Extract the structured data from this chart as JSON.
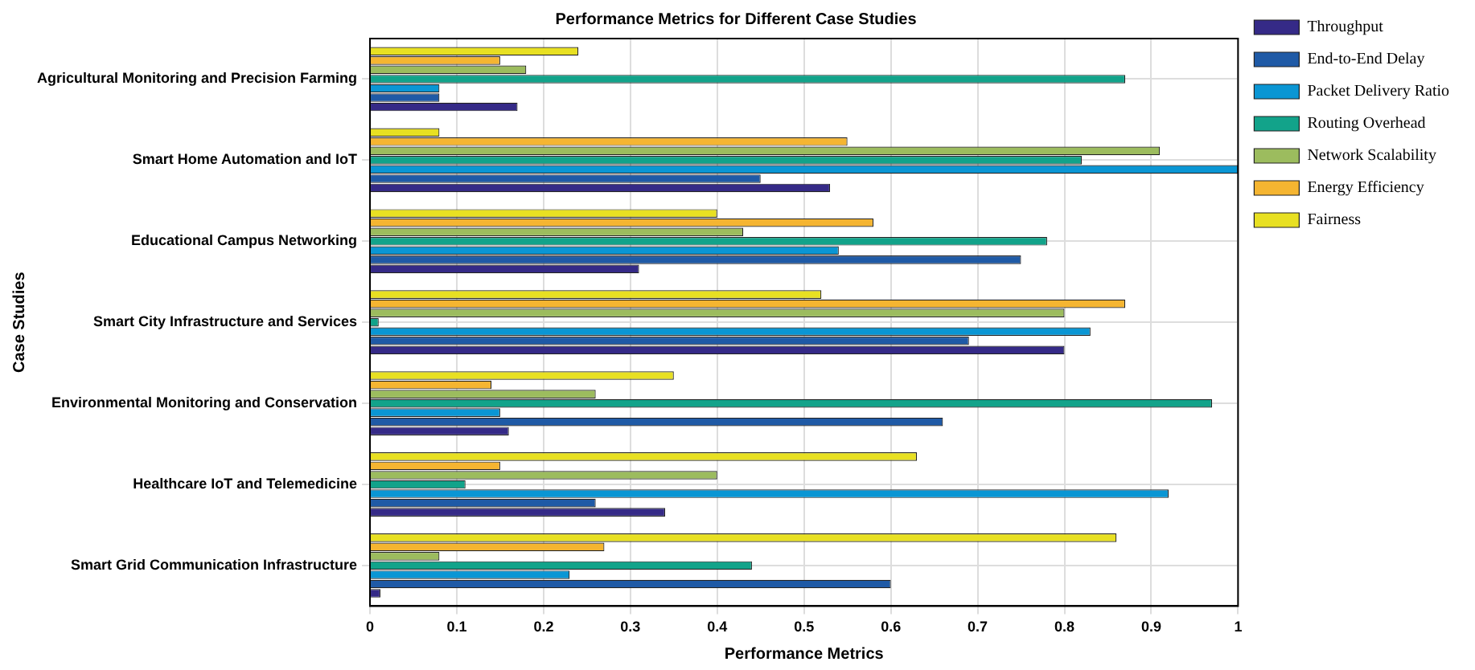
{
  "chart_data": {
    "type": "bar",
    "orientation": "horizontal",
    "title": "Performance Metrics for Different Case Studies",
    "xlabel": "Performance Metrics",
    "ylabel": "Case Studies",
    "categories": [
      "Agricultural Monitoring and Precision Farming",
      "Smart Home Automation and IoT",
      "Educational Campus Networking",
      "Smart City Infrastructure and Services",
      "Environmental Monitoring and Conservation",
      "Healthcare IoT and Telemedicine",
      "Smart Grid Communication Infrastructure"
    ],
    "series": [
      {
        "name": "Throughput",
        "color": "#352a87",
        "values": [
          0.17,
          0.53,
          0.31,
          0.8,
          0.16,
          0.34,
          0.012
        ]
      },
      {
        "name": "End-to-End Delay",
        "color": "#1f5aa6",
        "values": [
          0.08,
          0.45,
          0.75,
          0.69,
          0.66,
          0.26,
          0.6
        ]
      },
      {
        "name": "Packet Delivery Ratio",
        "color": "#0a96d4",
        "values": [
          0.08,
          1.0,
          0.54,
          0.83,
          0.15,
          0.92,
          0.23
        ]
      },
      {
        "name": "Routing Overhead",
        "color": "#12a38a",
        "values": [
          0.87,
          0.82,
          0.78,
          0.01,
          0.97,
          0.11,
          0.44
        ]
      },
      {
        "name": "Network Scalability",
        "color": "#9cbc5e",
        "values": [
          0.18,
          0.91,
          0.43,
          0.8,
          0.26,
          0.4,
          0.08
        ]
      },
      {
        "name": "Energy Efficiency",
        "color": "#f5b531",
        "values": [
          0.15,
          0.55,
          0.58,
          0.87,
          0.14,
          0.15,
          0.27
        ]
      },
      {
        "name": "Fairness",
        "color": "#e8e022",
        "values": [
          0.24,
          0.08,
          0.4,
          0.52,
          0.35,
          0.63,
          0.86
        ]
      }
    ],
    "xlim": [
      0,
      1
    ],
    "xticks": [
      0,
      0.1,
      0.2,
      0.3,
      0.4,
      0.5,
      0.6,
      0.7,
      0.8,
      0.9,
      1
    ],
    "grid": true,
    "legend": "right"
  }
}
